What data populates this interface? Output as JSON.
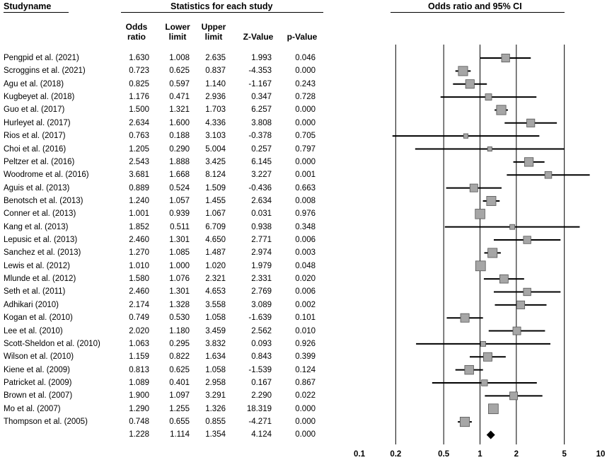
{
  "headers": {
    "study_name": "Studyname",
    "statistics": "Statistics for each study",
    "odds_ci": "Odds ratio and 95% CI"
  },
  "columns": {
    "odds_ratio": [
      "Odds",
      "ratio"
    ],
    "lower_limit": [
      "Lower",
      "limit"
    ],
    "upper_limit": [
      "Upper",
      "limit"
    ],
    "z_value": "Z-Value",
    "p_value": "p-Value"
  },
  "rows": [
    {
      "study": "Pengpid et al. (2021)",
      "or": "1.630",
      "lower": "1.008",
      "upper": "2.635",
      "z": "1.993",
      "p": "0.046"
    },
    {
      "study": "Scroggins et al. (2021)",
      "or": "0.723",
      "lower": "0.625",
      "upper": "0.837",
      "z": "-4.353",
      "p": "0.000"
    },
    {
      "study": "Agu et al. (2018)",
      "or": "0.825",
      "lower": "0.597",
      "upper": "1.140",
      "z": "-1.167",
      "p": "0.243"
    },
    {
      "study": "Kugbeyet al. (2018)",
      "or": "1.176",
      "lower": "0.471",
      "upper": "2.936",
      "z": "0.347",
      "p": "0.728"
    },
    {
      "study": "Guo et al. (2017)",
      "or": "1.500",
      "lower": "1.321",
      "upper": "1.703",
      "z": "6.257",
      "p": "0.000"
    },
    {
      "study": "Hurleyet al. (2017)",
      "or": "2.634",
      "lower": "1.600",
      "upper": "4.336",
      "z": "3.808",
      "p": "0.000"
    },
    {
      "study": "Rios et al. (2017)",
      "or": "0.763",
      "lower": "0.188",
      "upper": "3.103",
      "z": "-0.378",
      "p": "0.705"
    },
    {
      "study": "Choi et al. (2016)",
      "or": "1.205",
      "lower": "0.290",
      "upper": "5.004",
      "z": "0.257",
      "p": "0.797"
    },
    {
      "study": "Peltzer et al. (2016)",
      "or": "2.543",
      "lower": "1.888",
      "upper": "3.425",
      "z": "6.145",
      "p": "0.000"
    },
    {
      "study": "Woodrome et al. (2016)",
      "or": "3.681",
      "lower": "1.668",
      "upper": "8.124",
      "z": "3.227",
      "p": "0.001"
    },
    {
      "study": "Aguis et al. (2013)",
      "or": "0.889",
      "lower": "0.524",
      "upper": "1.509",
      "z": "-0.436",
      "p": "0.663"
    },
    {
      "study": "Benotsch et al. (2013)",
      "or": "1.240",
      "lower": "1.057",
      "upper": "1.455",
      "z": "2.634",
      "p": "0.008"
    },
    {
      "study": "Conner et al. (2013)",
      "or": "1.001",
      "lower": "0.939",
      "upper": "1.067",
      "z": "0.031",
      "p": "0.976"
    },
    {
      "study": "Kang et al. (2013)",
      "or": "1.852",
      "lower": "0.511",
      "upper": "6.709",
      "z": "0.938",
      "p": "0.348"
    },
    {
      "study": "Lepusic et al. (2013)",
      "or": "2.460",
      "lower": "1.301",
      "upper": "4.650",
      "z": "2.771",
      "p": "0.006"
    },
    {
      "study": "Sanchez et al. (2013)",
      "or": "1.270",
      "lower": "1.085",
      "upper": "1.487",
      "z": "2.974",
      "p": "0.003"
    },
    {
      "study": "Lewis et al. (2012)",
      "or": "1.010",
      "lower": "1.000",
      "upper": "1.020",
      "z": "1.979",
      "p": "0.048"
    },
    {
      "study": "Mlunde et al. (2012)",
      "or": "1.580",
      "lower": "1.076",
      "upper": "2.321",
      "z": "2.331",
      "p": "0.020"
    },
    {
      "study": "Seth et al. (2011)",
      "or": "2.460",
      "lower": "1.301",
      "upper": "4.653",
      "z": "2.769",
      "p": "0.006"
    },
    {
      "study": "Adhikari (2010)",
      "or": "2.174",
      "lower": "1.328",
      "upper": "3.558",
      "z": "3.089",
      "p": "0.002"
    },
    {
      "study": "Kogan et al. (2010)",
      "or": "0.749",
      "lower": "0.530",
      "upper": "1.058",
      "z": "-1.639",
      "p": "0.101"
    },
    {
      "study": "Lee et al. (2010)",
      "or": "2.020",
      "lower": "1.180",
      "upper": "3.459",
      "z": "2.562",
      "p": "0.010"
    },
    {
      "study": "Scott-Sheldon et al. (2010)",
      "or": "1.063",
      "lower": "0.295",
      "upper": "3.832",
      "z": "0.093",
      "p": "0.926"
    },
    {
      "study": "Wilson et al. (2010)",
      "or": "1.159",
      "lower": "0.822",
      "upper": "1.634",
      "z": "0.843",
      "p": "0.399"
    },
    {
      "study": "Kiene et al. (2009)",
      "or": "0.813",
      "lower": "0.625",
      "upper": "1.058",
      "z": "-1.539",
      "p": "0.124"
    },
    {
      "study": "Patricket al. (2009)",
      "or": "1.089",
      "lower": "0.401",
      "upper": "2.958",
      "z": "0.167",
      "p": "0.867"
    },
    {
      "study": "Brown et al. (2007)",
      "or": "1.900",
      "lower": "1.097",
      "upper": "3.291",
      "z": "2.290",
      "p": "0.022"
    },
    {
      "study": "Mo et al. (2007)",
      "or": "1.290",
      "lower": "1.255",
      "upper": "1.326",
      "z": "18.319",
      "p": "0.000"
    },
    {
      "study": "Thompson et al. (2005)",
      "or": "0.748",
      "lower": "0.655",
      "upper": "0.855",
      "z": "-4.271",
      "p": "0.000"
    }
  ],
  "summary": {
    "study": "",
    "or": "1.228",
    "lower": "1.114",
    "upper": "1.354",
    "z": "4.124",
    "p": "0.000"
  },
  "chart_data": {
    "type": "forest",
    "scale": "log",
    "title": "Odds ratio and 95% CI",
    "x_ticks": [
      0.1,
      0.2,
      0.5,
      1,
      2,
      5,
      10
    ],
    "x_tick_labels": [
      "0.1",
      "0.2",
      "0.5",
      "1",
      "2",
      "5",
      "10"
    ],
    "xlim": [
      0.1,
      10
    ],
    "reference_lines": [
      0.2,
      0.5,
      1,
      2,
      5
    ],
    "marker": "square",
    "summary_marker": "diamond",
    "marker_color": "#a6a6a6",
    "summary_color": "#000000"
  }
}
